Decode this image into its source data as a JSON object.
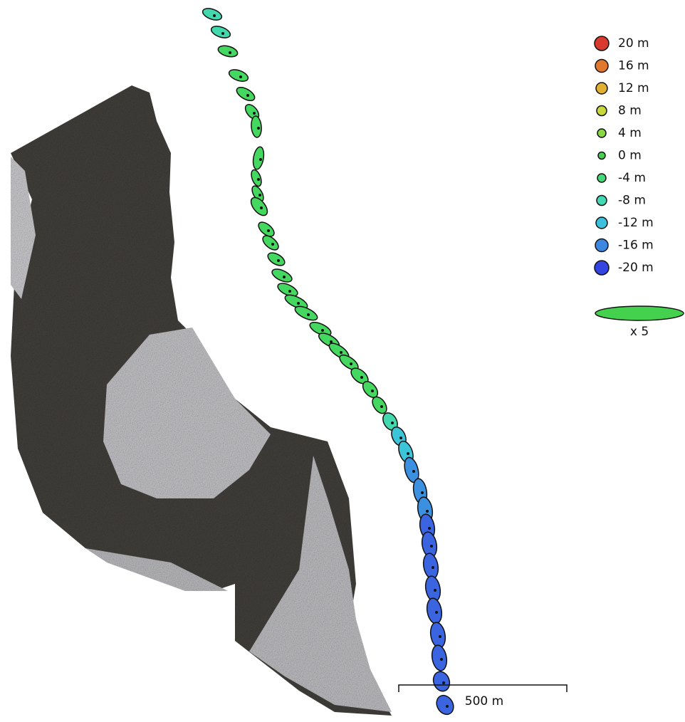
{
  "legend": {
    "items": [
      {
        "label": "20 m",
        "color": "#d93a2e"
      },
      {
        "label": "16 m",
        "color": "#e0782e"
      },
      {
        "label": "12 m",
        "color": "#e0b030"
      },
      {
        "label": "8 m",
        "color": "#c8d83a"
      },
      {
        "label": "4 m",
        "color": "#88d844"
      },
      {
        "label": "0 m",
        "color": "#44d24e"
      },
      {
        "label": "-4 m",
        "color": "#44d878"
      },
      {
        "label": "-8 m",
        "color": "#44d8b4"
      },
      {
        "label": "-12 m",
        "color": "#3cc0dc"
      },
      {
        "label": "-16 m",
        "color": "#3c88e0"
      },
      {
        "label": "-20 m",
        "color": "#3444e0"
      }
    ],
    "scale_label": "x 5"
  },
  "scale_bar": {
    "label": "500 m"
  }
}
